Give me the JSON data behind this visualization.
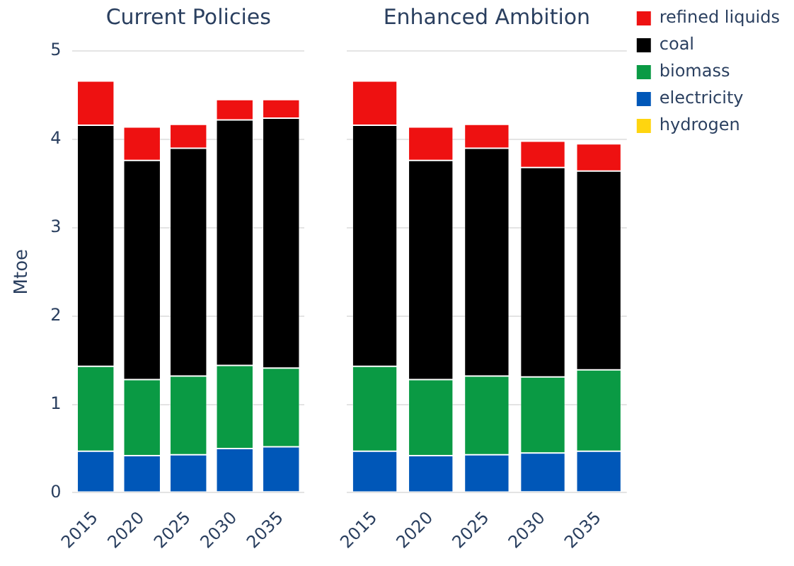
{
  "chart_data": [
    {
      "type": "bar",
      "title": "Current Policies",
      "ylabel": "Mtoe",
      "stacked": true,
      "categories": [
        "2015",
        "2020",
        "2025",
        "2030",
        "2035"
      ],
      "ylim": [
        0,
        5
      ],
      "yticks": [
        0,
        1,
        2,
        3,
        4,
        5
      ],
      "grid": "y",
      "legend": false,
      "series": [
        {
          "color": "#ffd50f",
          "values": [
            0,
            0,
            0,
            0.01,
            0.01
          ]
        },
        {
          "color": "#0057b8",
          "values": [
            0.47,
            0.42,
            0.43,
            0.49,
            0.51
          ]
        },
        {
          "color": "#0a9a44",
          "values": [
            0.96,
            0.86,
            0.89,
            0.94,
            0.89
          ]
        },
        {
          "color": "#000000",
          "values": [
            2.73,
            2.48,
            2.58,
            2.78,
            2.83
          ]
        },
        {
          "color": "#ee1111",
          "values": [
            0.5,
            0.38,
            0.27,
            0.23,
            0.21
          ]
        }
      ]
    },
    {
      "type": "bar",
      "title": "Enhanced Ambition",
      "stacked": true,
      "categories": [
        "2015",
        "2020",
        "2025",
        "2030",
        "2035"
      ],
      "ylim": [
        0,
        5
      ],
      "yticks": [
        0,
        1,
        2,
        3,
        4,
        5
      ],
      "grid": "y",
      "legend": "top right",
      "tick_labels": "x",
      "series": [
        {
          "name": "hydrogen",
          "color": "#ffd50f",
          "values": [
            0,
            0,
            0,
            0.01,
            0.01
          ]
        },
        {
          "name": "electricity",
          "color": "#0057b8",
          "values": [
            0.47,
            0.42,
            0.43,
            0.44,
            0.46
          ]
        },
        {
          "name": "biomass",
          "color": "#0a9a44",
          "values": [
            0.96,
            0.86,
            0.89,
            0.86,
            0.92
          ]
        },
        {
          "name": "coal",
          "color": "#000000",
          "values": [
            2.73,
            2.48,
            2.58,
            2.37,
            2.25
          ]
        },
        {
          "name": "refined liquids",
          "color": "#ee1111",
          "values": [
            0.5,
            0.38,
            0.27,
            0.3,
            0.31
          ]
        }
      ]
    }
  ]
}
